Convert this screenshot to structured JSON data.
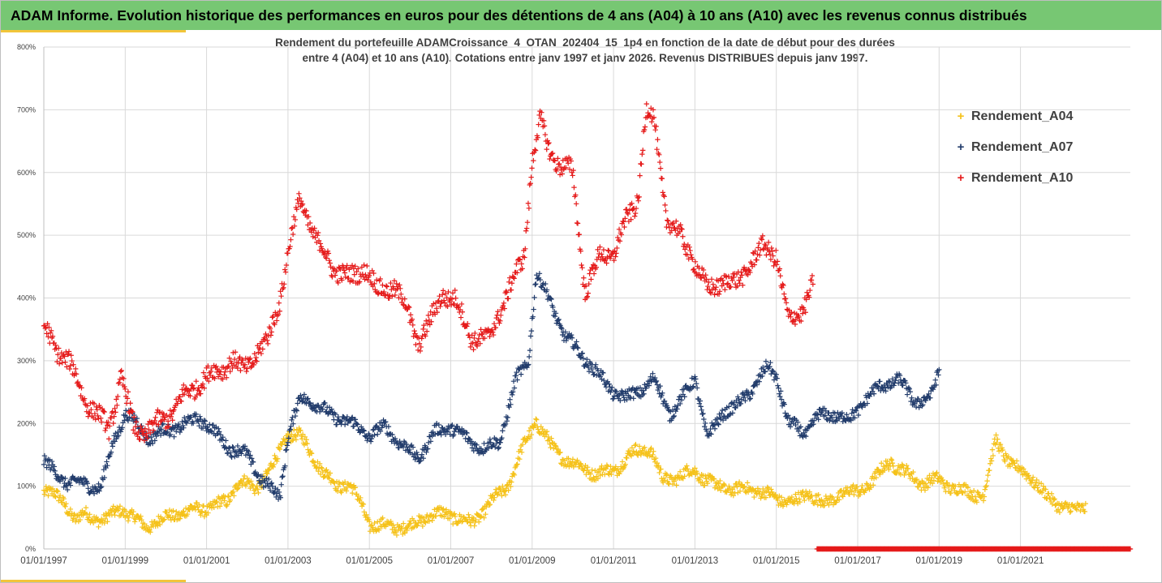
{
  "header": {
    "title": "ADAM Informe. Evolution historique des performances en euros pour des détentions de 4 ans (A04) à 10 ans (A10) avec les revenus connus distribués"
  },
  "chart_data": {
    "type": "scatter",
    "title_line1": "Rendement du portefeuille ADAMCroissance_4_OTAN_202404_15_1p4  en fonction de la date de début pour des durées",
    "title_line2": "entre 4 (A04) et 10 ans (A10). Cotations entre janv 1997 et janv 2026. Revenus DISTRIBUES depuis janv 1997.",
    "xlabel": "",
    "ylabel": "",
    "xlim": [
      1997.0,
      2023.7
    ],
    "ylim": [
      0,
      800
    ],
    "grid": true,
    "x_tick_values": [
      1997,
      1999,
      2001,
      2003,
      2005,
      2007,
      2009,
      2011,
      2013,
      2015,
      2017,
      2019,
      2021
    ],
    "x_tick_labels": [
      "01/01/1997",
      "01/01/1999",
      "01/01/2001",
      "01/01/2003",
      "01/01/2005",
      "01/01/2007",
      "01/01/2009",
      "01/01/2011",
      "01/01/2013",
      "01/01/2015",
      "01/01/2017",
      "01/01/2019",
      "01/01/2021"
    ],
    "y_tick_values": [
      0,
      100,
      200,
      300,
      400,
      500,
      600,
      700,
      800
    ],
    "y_tick_labels": [
      "0%",
      "100%",
      "200%",
      "300%",
      "400%",
      "500%",
      "600%",
      "700%",
      "800%"
    ],
    "legend_position": "right",
    "series": [
      {
        "name": "Rendement_A04",
        "color": "#f5c21b",
        "x": [
          1997.0,
          1997.5,
          1997.8,
          1998.0,
          1998.5,
          1998.9,
          1999.2,
          1999.5,
          2000.0,
          2000.5,
          2001.0,
          2001.5,
          2001.8,
          2002.2,
          2002.7,
          2003.0,
          2003.3,
          2003.6,
          2003.9,
          2004.2,
          2004.5,
          2004.8,
          2005.0,
          2005.5,
          2006.0,
          2006.5,
          2007.0,
          2007.5,
          2008.0,
          2008.4,
          2008.8,
          2009.1,
          2009.5,
          2009.9,
          2010.2,
          2010.6,
          2011.0,
          2011.5,
          2011.9,
          2012.2,
          2012.6,
          2013.0,
          2013.5,
          2014.0,
          2014.5,
          2015.0,
          2015.5,
          2015.8,
          2016.2,
          2016.6,
          2017.0,
          2017.4,
          2017.8,
          2018.2,
          2018.6,
          2019.0,
          2019.4,
          2019.8,
          2020.1,
          2020.4,
          2020.8,
          2021.2,
          2021.6,
          2022.0,
          2022.3,
          2022.6
        ],
        "values": [
          95,
          75,
          45,
          55,
          45,
          65,
          50,
          35,
          50,
          60,
          65,
          75,
          110,
          95,
          140,
          185,
          180,
          150,
          120,
          100,
          105,
          70,
          40,
          35,
          35,
          55,
          55,
          40,
          75,
          100,
          165,
          205,
          160,
          140,
          130,
          120,
          125,
          155,
          160,
          110,
          115,
          125,
          100,
          95,
          95,
          80,
          75,
          90,
          70,
          90,
          90,
          110,
          140,
          120,
          105,
          110,
          95,
          90,
          85,
          175,
          130,
          120,
          85,
          70,
          60,
          70
        ]
      },
      {
        "name": "Rendement_A07",
        "color": "#233d6c",
        "x": [
          1997.0,
          1997.3,
          1997.6,
          1998.0,
          1998.4,
          1998.7,
          1999.0,
          1999.3,
          1999.6,
          2000.0,
          2000.4,
          2000.8,
          2001.2,
          2001.6,
          2002.0,
          2002.4,
          2002.8,
          2003.0,
          2003.3,
          2003.6,
          2004.0,
          2004.4,
          2004.7,
          2005.0,
          2005.4,
          2005.8,
          2006.2,
          2006.6,
          2007.0,
          2007.4,
          2007.8,
          2008.2,
          2008.6,
          2008.9,
          2009.1,
          2009.4,
          2009.8,
          2010.2,
          2010.6,
          2011.0,
          2011.3,
          2011.7,
          2012.0,
          2012.4,
          2012.8,
          2013.0,
          2013.3,
          2013.7,
          2014.0,
          2014.4,
          2014.8,
          2015.0,
          2015.3,
          2015.7,
          2016.0,
          2016.4,
          2016.8,
          2017.2,
          2017.6,
          2018.0,
          2018.4,
          2018.8,
          2019.0
        ],
        "values": [
          140,
          120,
          105,
          105,
          95,
          170,
          215,
          200,
          175,
          190,
          195,
          210,
          185,
          160,
          150,
          105,
          85,
          180,
          240,
          235,
          215,
          205,
          195,
          180,
          195,
          165,
          145,
          185,
          195,
          175,
          160,
          170,
          270,
          295,
          440,
          400,
          340,
          310,
          280,
          250,
          240,
          255,
          270,
          215,
          250,
          275,
          175,
          220,
          225,
          255,
          290,
          275,
          200,
          185,
          210,
          215,
          205,
          240,
          260,
          270,
          235,
          240,
          285
        ]
      },
      {
        "name": "Rendement_A10",
        "color": "#e51b1b",
        "x": [
          1997.0,
          1997.3,
          1997.6,
          1998.0,
          1998.3,
          1998.6,
          1998.9,
          1999.2,
          1999.5,
          1999.8,
          2000.1,
          2000.4,
          2000.8,
          2001.2,
          2001.6,
          2001.9,
          2002.2,
          2002.5,
          2002.8,
          2003.0,
          2003.3,
          2003.7,
          2004.1,
          2004.5,
          2004.9,
          2005.2,
          2005.6,
          2005.9,
          2006.2,
          2006.5,
          2006.8,
          2007.1,
          2007.5,
          2007.9,
          2008.2,
          2008.5,
          2008.8,
          2009.0,
          2009.2,
          2009.4,
          2009.7,
          2010.0,
          2010.3,
          2010.7,
          2011.0,
          2011.3,
          2011.6,
          2011.8,
          2012.0,
          2012.3,
          2012.7,
          2013.0,
          2013.3,
          2013.7,
          2014.0,
          2014.4,
          2014.7,
          2015.0,
          2015.3,
          2015.6,
          2015.9
        ],
        "values": [
          350,
          320,
          300,
          240,
          215,
          190,
          275,
          195,
          185,
          200,
          215,
          240,
          265,
          280,
          300,
          285,
          310,
          330,
          400,
          470,
          560,
          490,
          450,
          430,
          450,
          410,
          420,
          385,
          330,
          360,
          410,
          395,
          340,
          330,
          380,
          420,
          470,
          620,
          680,
          640,
          610,
          600,
          410,
          470,
          470,
          520,
          560,
          700,
          680,
          530,
          490,
          460,
          410,
          430,
          420,
          460,
          480,
          470,
          360,
          380,
          420
        ]
      }
    ],
    "zero_band": {
      "name": "Rendement_A10",
      "color": "#e51b1b",
      "x_start": 2016.0,
      "x_end": 2023.7,
      "value": 0
    }
  }
}
